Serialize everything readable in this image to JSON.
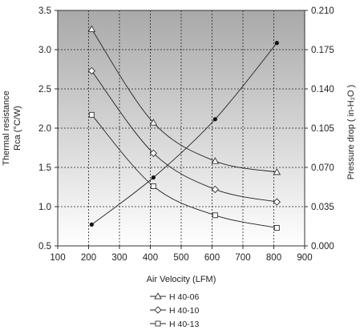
{
  "chart_data": {
    "type": "line",
    "xlabel": "Air Velocity (LFM)",
    "ylabel_left_line1": "Thermal resistance",
    "ylabel_left_line2": "Rca (°C/W)",
    "ylabel_right": "Pressure drop ( in-H₂O )",
    "xlim": [
      100,
      900
    ],
    "ylim_left": [
      0.5,
      3.5
    ],
    "ylim_right": [
      0.0,
      0.21
    ],
    "x_ticks": [
      "100",
      "200",
      "300",
      "400",
      "500",
      "600",
      "700",
      "800",
      "900"
    ],
    "y_left_ticks": [
      "0.5",
      "1.0",
      "1.5",
      "2.0",
      "2.5",
      "3.0",
      "3.5"
    ],
    "y_right_ticks": [
      "0.000",
      "0.035",
      "0.070",
      "0.105",
      "0.140",
      "0.175",
      "0.210"
    ],
    "grid": true,
    "legend_position": "bottom-center",
    "series": [
      {
        "name": "H 40-06",
        "marker": "triangle",
        "axis": "left",
        "x": [
          210,
          410,
          610,
          810
        ],
        "y": [
          3.26,
          2.07,
          1.58,
          1.44
        ]
      },
      {
        "name": "H 40-10",
        "marker": "diamond",
        "axis": "left",
        "x": [
          210,
          410,
          610,
          810
        ],
        "y": [
          2.73,
          1.68,
          1.22,
          1.06
        ]
      },
      {
        "name": "H 40-13",
        "marker": "square",
        "axis": "left",
        "x": [
          210,
          410,
          610,
          810
        ],
        "y": [
          2.17,
          1.26,
          0.89,
          0.73
        ]
      },
      {
        "marker": "dot",
        "axis": "right",
        "x": [
          210,
          410,
          610,
          810
        ],
        "y": [
          0.019,
          0.061,
          0.113,
          0.181
        ]
      }
    ]
  }
}
